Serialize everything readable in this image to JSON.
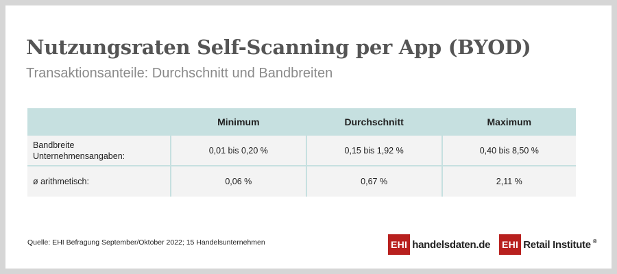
{
  "header": {
    "title": "Nutzungsraten Self-Scanning per App (BYOD)",
    "subtitle": "Transaktionsanteile: Durchschnitt und Bandbreiten"
  },
  "table": {
    "columns": [
      "",
      "Minimum",
      "Durchschnitt",
      "Maximum"
    ],
    "rows": [
      {
        "label_line1": "Bandbreite",
        "label_line2": "Unternehmensangaben:",
        "values": [
          "0,01 bis 0,20 %",
          "0,15 bis 1,92 %",
          "0,40 bis 8,50 %"
        ]
      },
      {
        "label_line1": "ø arithmetisch:",
        "values": [
          "0,06 %",
          "0,67 %",
          "2,11 %"
        ]
      }
    ]
  },
  "footer": {
    "source": "Quelle: EHI Befragung September/Oktober 2022; 15 Handelsunternehmen",
    "logo1": {
      "box": "EHI",
      "text": "handelsdaten.de"
    },
    "logo2": {
      "box": "EHI",
      "text": "Retail Institute",
      "mark": "®"
    }
  },
  "colors": {
    "accent_teal": "#c6e0e0",
    "brand_red": "#b8201e",
    "title_gray": "#555555",
    "subtitle_gray": "#8a8a8a"
  }
}
